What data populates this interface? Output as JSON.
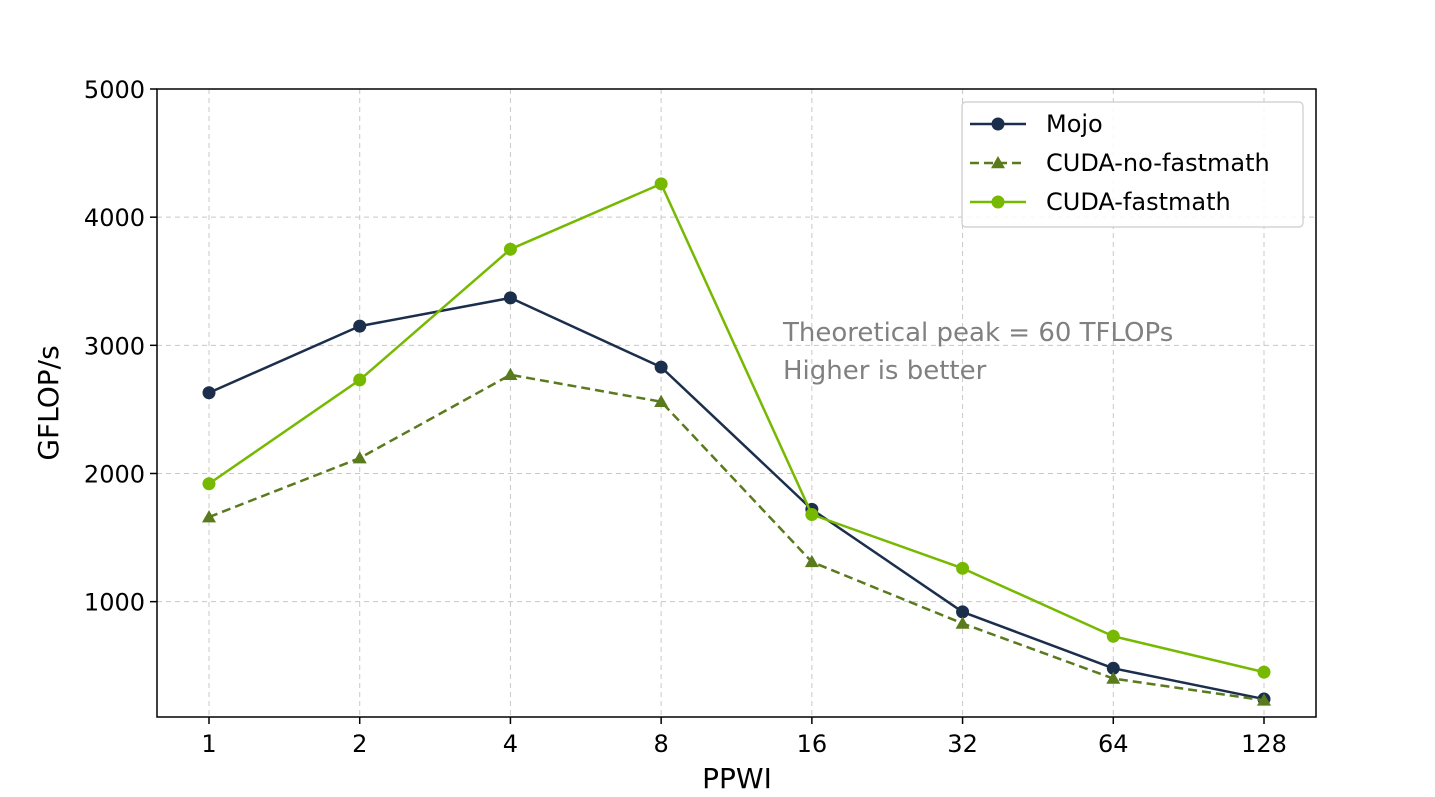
{
  "chart_data": {
    "type": "line",
    "title": "",
    "xlabel": "PPWI",
    "ylabel": "GFLOP/s",
    "categories": [
      "1",
      "2",
      "4",
      "8",
      "16",
      "32",
      "64",
      "128"
    ],
    "ylim": [
      100,
      5000
    ],
    "yticks": [
      "1000",
      "2000",
      "3000",
      "4000",
      "5000"
    ],
    "grid": true,
    "legend_position": "top-right",
    "series": [
      {
        "name": "Mojo",
        "color": "#1b2e4b",
        "marker": "circle",
        "linestyle": "solid",
        "values": [
          2630,
          3150,
          3370,
          2830,
          1720,
          920,
          480,
          240
        ]
      },
      {
        "name": "CUDA-no-fastmath",
        "color": "#5a7a1e",
        "marker": "triangle",
        "linestyle": "dashed",
        "values": [
          1660,
          2120,
          2770,
          2560,
          1310,
          830,
          400,
          230
        ]
      },
      {
        "name": "CUDA-fastmath",
        "color": "#76b900",
        "marker": "circle",
        "linestyle": "solid",
        "values": [
          1920,
          2730,
          3750,
          4260,
          1680,
          1260,
          730,
          450
        ]
      }
    ],
    "annotations": [
      "Theoretical peak = 60 TFLOPs",
      "Higher is better"
    ]
  }
}
